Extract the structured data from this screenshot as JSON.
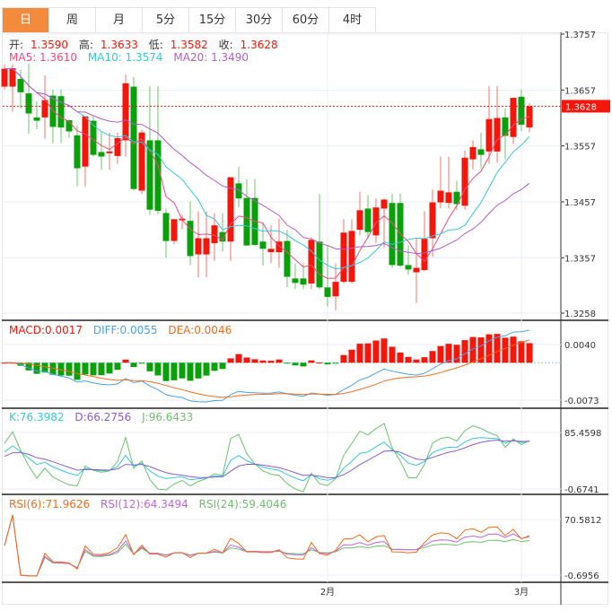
{
  "tabs": [
    {
      "label": "日",
      "active": true
    },
    {
      "label": "周"
    },
    {
      "label": "月"
    },
    {
      "label": "5分"
    },
    {
      "label": "15分"
    },
    {
      "label": "30分"
    },
    {
      "label": "60分"
    },
    {
      "label": "4时"
    }
  ],
  "ohlc_legend": {
    "open_label": "开:",
    "open": "1.3590",
    "high_label": "高:",
    "high": "1.3633",
    "low_label": "低:",
    "low": "1.3582",
    "close_label": "收:",
    "close": "1.3628"
  },
  "ma_legend": {
    "ma5": "MA5: 1.3610",
    "ma10": "MA10: 1.3574",
    "ma20": "MA20: 1.3490"
  },
  "macd_legend": {
    "macd": "MACD:0.0017",
    "diff": "DIFF:0.0055",
    "dea": "DEA:0.0046"
  },
  "kdj_legend": {
    "k": "K:76.3982",
    "d": "D:66.2756",
    "j": "J:96.6433"
  },
  "rsi_legend": {
    "rsi6": "RSI(6):71.9626",
    "rsi12": "RSI(12):64.3494",
    "rsi24": "RSI(24):59.4046"
  },
  "price_axis": [
    "1.3757",
    "1.3657",
    "1.3557",
    "1.3457",
    "1.3357",
    "1.3258"
  ],
  "current_price": "1.3628",
  "macd_axis": [
    "0.0040",
    "-0.0073"
  ],
  "kdj_axis": [
    "85.4598",
    "-0.6741"
  ],
  "rsi_axis": [
    "70.5812",
    "-0.6956"
  ],
  "x_labels": [
    {
      "label": "2月",
      "index": 40
    },
    {
      "label": "3月",
      "index": 64
    }
  ],
  "colors": {
    "up": "#f5160b",
    "down": "#0aa00a",
    "ma5": "#ee4b7c",
    "ma10": "#36c6d8",
    "ma20": "#b35cc9",
    "diff": "#4aa3e8",
    "dea": "#f26b1d",
    "k": "#36c6d8",
    "d": "#8a5cc9",
    "j": "#6cc26c",
    "rsi6": "#f26b1d",
    "rsi12": "#c065d6",
    "rsi24": "#6cc26c",
    "active_tab": "#f28b3c"
  },
  "chart_data": {
    "type": "candlestick",
    "price_range": [
      1.3258,
      1.3757
    ],
    "candles_ohlc": [
      [
        1.3663,
        1.3703,
        1.3658,
        1.3695
      ],
      [
        1.3663,
        1.3703,
        1.3618,
        1.3696
      ],
      [
        1.3677,
        1.3693,
        1.3623,
        1.3653
      ],
      [
        1.3651,
        1.3704,
        1.3579,
        1.3615
      ],
      [
        1.3608,
        1.3637,
        1.3587,
        1.3602
      ],
      [
        1.3608,
        1.3683,
        1.357,
        1.3639
      ],
      [
        1.3647,
        1.3658,
        1.3562,
        1.3591
      ],
      [
        1.3646,
        1.3658,
        1.3562,
        1.359
      ],
      [
        1.3603,
        1.3605,
        1.3571,
        1.3583
      ],
      [
        1.3576,
        1.3594,
        1.3485,
        1.3517
      ],
      [
        1.352,
        1.361,
        1.3485,
        1.361
      ],
      [
        1.3602,
        1.361,
        1.3538,
        1.3541
      ],
      [
        1.3546,
        1.3581,
        1.3514,
        1.3538
      ],
      [
        1.3544,
        1.3581,
        1.3514,
        1.3547
      ],
      [
        1.3539,
        1.3581,
        1.3525,
        1.3571
      ],
      [
        1.3567,
        1.3685,
        1.3538,
        1.3669
      ],
      [
        1.3663,
        1.368,
        1.3477,
        1.348
      ],
      [
        1.3477,
        1.3586,
        1.3471,
        1.3581
      ],
      [
        1.3567,
        1.3664,
        1.3434,
        1.3443
      ],
      [
        1.3567,
        1.3664,
        1.3434,
        1.3441
      ],
      [
        1.3437,
        1.3445,
        1.3357,
        1.3387
      ],
      [
        1.3387,
        1.3426,
        1.3381,
        1.3426
      ],
      [
        1.3424,
        1.3434,
        1.3408,
        1.3427
      ],
      [
        1.3423,
        1.3458,
        1.3344,
        1.336
      ],
      [
        1.3363,
        1.344,
        1.3322,
        1.3392
      ],
      [
        1.3363,
        1.344,
        1.3322,
        1.3392
      ],
      [
        1.3383,
        1.3437,
        1.3352,
        1.3415
      ],
      [
        1.3403,
        1.3437,
        1.3368,
        1.3386
      ],
      [
        1.3386,
        1.3501,
        1.3351,
        1.3501
      ],
      [
        1.349,
        1.352,
        1.3447,
        1.3463
      ],
      [
        1.3464,
        1.3498,
        1.3378,
        1.3379
      ],
      [
        1.3464,
        1.3498,
        1.3378,
        1.338
      ],
      [
        1.3386,
        1.3418,
        1.3343,
        1.3373
      ],
      [
        1.3367,
        1.3415,
        1.3347,
        1.3373
      ],
      [
        1.3367,
        1.3427,
        1.3339,
        1.3386
      ],
      [
        1.3387,
        1.3407,
        1.3304,
        1.3323
      ],
      [
        1.332,
        1.3347,
        1.3301,
        1.3312
      ],
      [
        1.332,
        1.3347,
        1.3301,
        1.3309
      ],
      [
        1.3311,
        1.3394,
        1.3301,
        1.3389
      ],
      [
        1.3386,
        1.3471,
        1.3301,
        1.3304
      ],
      [
        1.3304,
        1.3379,
        1.327,
        1.3287
      ],
      [
        1.3288,
        1.3347,
        1.3263,
        1.3314
      ],
      [
        1.3314,
        1.3426,
        1.3311,
        1.3402
      ],
      [
        1.3314,
        1.3426,
        1.3311,
        1.3405
      ],
      [
        1.3407,
        1.3475,
        1.3397,
        1.3442
      ],
      [
        1.3445,
        1.3469,
        1.3391,
        1.3403
      ],
      [
        1.3397,
        1.3463,
        1.3383,
        1.3447
      ],
      [
        1.3445,
        1.3463,
        1.3375,
        1.3461
      ],
      [
        1.3455,
        1.3472,
        1.3339,
        1.3344
      ],
      [
        1.3455,
        1.3472,
        1.3339,
        1.3343
      ],
      [
        1.3344,
        1.3379,
        1.3327,
        1.3336
      ],
      [
        1.3331,
        1.3391,
        1.3276,
        1.3339
      ],
      [
        1.3335,
        1.344,
        1.3333,
        1.3391
      ],
      [
        1.3392,
        1.3479,
        1.3359,
        1.3456
      ],
      [
        1.3456,
        1.3538,
        1.3445,
        1.3477
      ],
      [
        1.3455,
        1.3538,
        1.3445,
        1.3474
      ],
      [
        1.3475,
        1.3495,
        1.3442,
        1.3453
      ],
      [
        1.345,
        1.3549,
        1.3443,
        1.3536
      ],
      [
        1.3533,
        1.3567,
        1.3515,
        1.3555
      ],
      [
        1.3551,
        1.3581,
        1.3517,
        1.3541
      ],
      [
        1.3547,
        1.3664,
        1.3525,
        1.3605
      ],
      [
        1.3547,
        1.3664,
        1.3527,
        1.3607
      ],
      [
        1.3608,
        1.3624,
        1.3533,
        1.3575
      ],
      [
        1.3573,
        1.3643,
        1.356,
        1.3643
      ],
      [
        1.3645,
        1.3658,
        1.3584,
        1.3595
      ],
      [
        1.359,
        1.3633,
        1.3582,
        1.3628
      ]
    ]
  }
}
